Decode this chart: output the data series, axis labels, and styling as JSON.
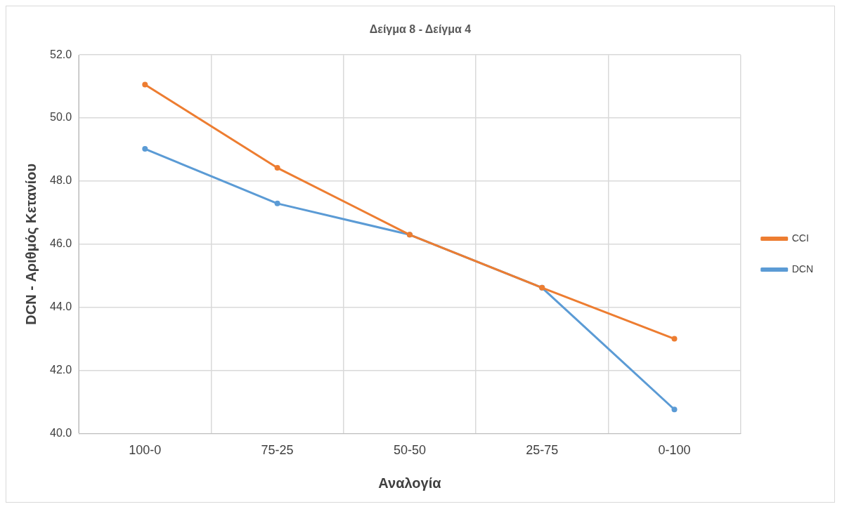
{
  "chart_data": {
    "type": "line",
    "title": "Δείγμα 8 - Δείγμα 4",
    "xlabel": "Αναλογία",
    "ylabel": "DCN - Αριθμός Κετανίου",
    "categories": [
      "100-0",
      "75-25",
      "50-50",
      "25-75",
      "0-100"
    ],
    "series": [
      {
        "name": "DCN",
        "color": "#5b9bd5",
        "values": [
          49.02,
          47.29,
          46.3,
          44.62,
          40.76
        ]
      },
      {
        "name": "CCI",
        "color": "#ed7d31",
        "values": [
          51.06,
          48.42,
          46.3,
          44.62,
          43.0
        ]
      }
    ],
    "ylim": [
      40,
      52
    ],
    "yticks": [
      {
        "value": 40,
        "label": "40.0"
      },
      {
        "value": 42,
        "label": "42.0"
      },
      {
        "value": 44,
        "label": "44.0"
      },
      {
        "value": 46,
        "label": "46.0"
      },
      {
        "value": 48,
        "label": "48.0"
      },
      {
        "value": 50,
        "label": "50.0"
      },
      {
        "value": 52,
        "label": "52.0"
      }
    ],
    "grid": true,
    "legend": "right",
    "marker": "circle",
    "line_style": "solid"
  }
}
